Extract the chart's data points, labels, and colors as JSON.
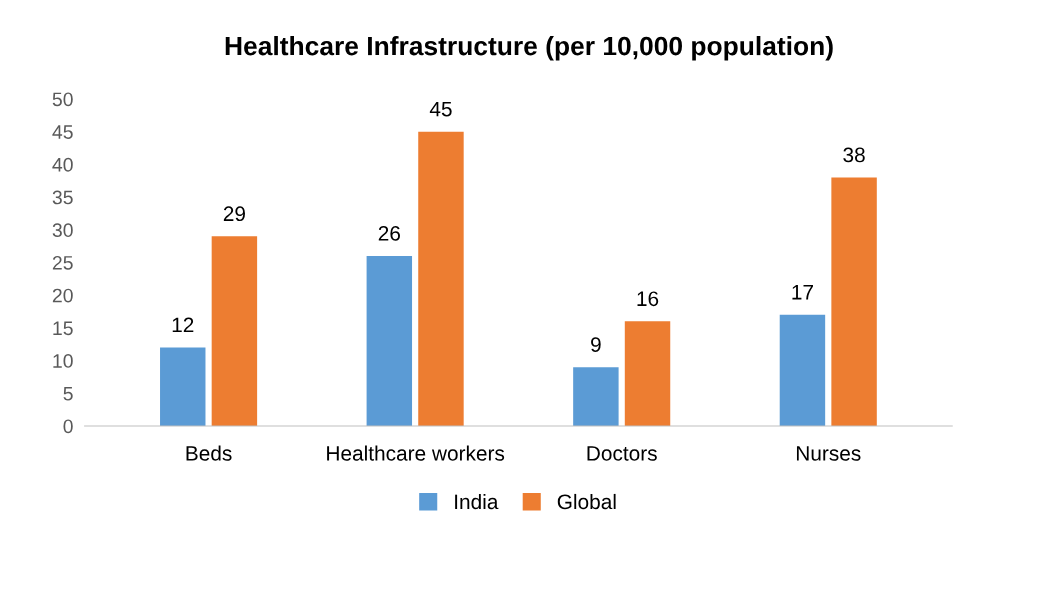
{
  "chart_data": {
    "type": "bar",
    "title": "Healthcare Infrastructure (per 10,000 population)",
    "categories": [
      "Beds",
      "Healthcare workers",
      "Doctors",
      "Nurses"
    ],
    "series": [
      {
        "name": "India",
        "color": "#5b9bd5",
        "values": [
          12,
          26,
          9,
          17
        ]
      },
      {
        "name": "Global",
        "color": "#ed7d31",
        "values": [
          29,
          45,
          16,
          38
        ]
      }
    ],
    "ylim": [
      0,
      50
    ],
    "yticks": [
      0,
      5,
      10,
      15,
      20,
      25,
      30,
      35,
      40,
      45,
      50
    ],
    "grid": false,
    "legend": "bottom",
    "data_labels": true
  }
}
